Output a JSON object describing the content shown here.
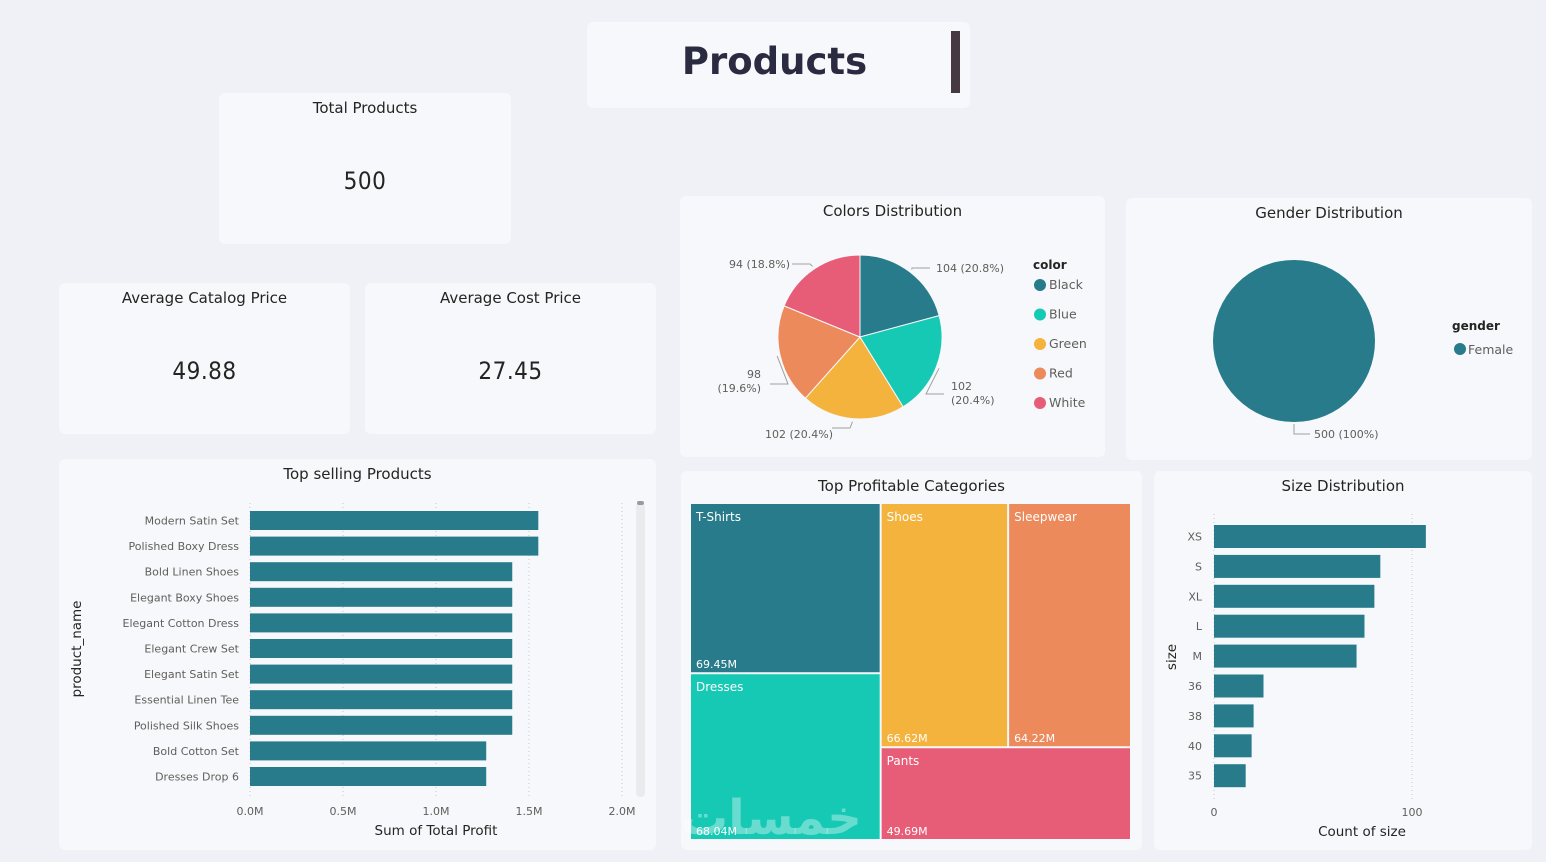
{
  "header": {
    "title": "Products"
  },
  "kpis": {
    "total_products": {
      "label": "Total Products",
      "value": "500"
    },
    "avg_catalog_price": {
      "label": "Average Catalog Price",
      "value": "49.88"
    },
    "avg_cost_price": {
      "label": "Average Cost Price",
      "value": "27.45"
    }
  },
  "colors": {
    "teal": "#277b8b",
    "aqua": "#16c9b5",
    "yellow": "#f4b33c",
    "orange": "#ed8a5c",
    "pink": "#e75c76"
  },
  "watermark": {
    "text": "خمسات"
  },
  "chart_data": [
    {
      "id": "colors",
      "type": "pie",
      "title": "Colors Distribution",
      "legend_title": "color",
      "legend_position": "right",
      "categories": [
        "Black",
        "Blue",
        "Green",
        "Red",
        "White"
      ],
      "values": [
        104,
        102,
        102,
        98,
        94
      ],
      "percents": [
        "20.8%",
        "20.4%",
        "20.4%",
        "19.6%",
        "18.8%"
      ],
      "labels": [
        "104 (20.8%)",
        "102 (20.4%)",
        "102 (20.4%)",
        "98 (19.6%)",
        "94 (18.8%)"
      ],
      "colors": [
        "#277b8b",
        "#16c9b5",
        "#f4b33c",
        "#ed8a5c",
        "#e75c76"
      ]
    },
    {
      "id": "gender",
      "type": "pie",
      "title": "Gender Distribution",
      "legend_title": "gender",
      "legend_position": "right",
      "categories": [
        "Female"
      ],
      "values": [
        500
      ],
      "labels": [
        "500 (100%)"
      ],
      "colors": [
        "#277b8b"
      ]
    },
    {
      "id": "top_selling",
      "type": "bar",
      "orientation": "horizontal",
      "title": "Top selling Products",
      "xlabel": "Sum of Total Profit",
      "ylabel": "product_name",
      "categories": [
        "Modern Satin Set",
        "Polished Boxy Dress",
        "Bold Linen Shoes",
        "Elegant Boxy Shoes",
        "Elegant Cotton Dress",
        "Elegant Crew Set",
        "Elegant Satin Set",
        "Essential Linen Tee",
        "Polished Silk Shoes",
        "Bold Cotton Set",
        "Dresses Drop 6"
      ],
      "values": [
        1.55,
        1.55,
        1.41,
        1.41,
        1.41,
        1.41,
        1.41,
        1.41,
        1.41,
        1.27,
        1.27
      ],
      "value_unit": "M",
      "xlim": [
        0,
        2.0
      ],
      "xticks": [
        "0.0M",
        "0.5M",
        "1.0M",
        "1.5M",
        "2.0M"
      ],
      "grid": true,
      "color": "#277b8b"
    },
    {
      "id": "categories",
      "type": "treemap",
      "title": "Top Profitable Categories",
      "categories": [
        "T-Shirts",
        "Dresses",
        "Shoes",
        "Sleepwear",
        "Pants"
      ],
      "values": [
        69.45,
        68.04,
        66.62,
        64.22,
        49.69
      ],
      "labels": [
        "69.45M",
        "68.04M",
        "66.62M",
        "64.22M",
        "49.69M"
      ],
      "colors": [
        "#277b8b",
        "#16c9b5",
        "#f4b33c",
        "#ed8a5c",
        "#e75c76"
      ]
    },
    {
      "id": "sizes",
      "type": "bar",
      "orientation": "horizontal",
      "title": "Size Distribution",
      "xlabel": "Count of size",
      "ylabel": "size",
      "categories": [
        "XS",
        "S",
        "XL",
        "L",
        "M",
        "36",
        "38",
        "40",
        "35"
      ],
      "values": [
        107,
        84,
        81,
        76,
        72,
        25,
        20,
        19,
        16
      ],
      "xlim": [
        0,
        100
      ],
      "xticks": [
        "0",
        "100"
      ],
      "grid": true,
      "color": "#277b8b"
    }
  ]
}
